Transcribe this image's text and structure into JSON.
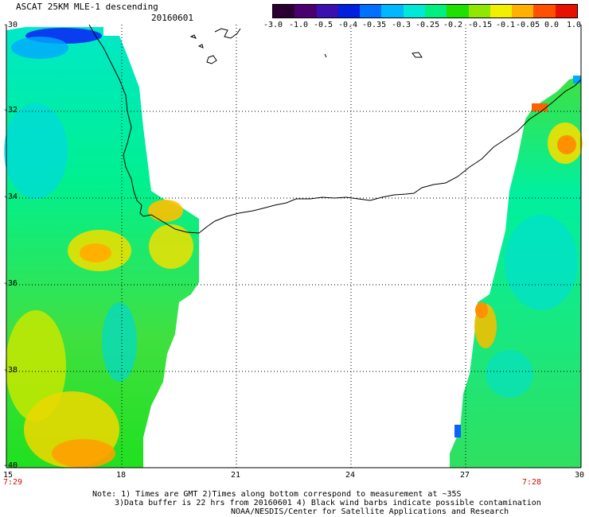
{
  "header": {
    "title": "ASCAT 25KM MLE-1 descending",
    "date": "20160601"
  },
  "colorbar": {
    "labels": [
      "-3.0",
      "-1.0",
      "-0.5",
      "-0.4",
      "-0.35",
      "-0.3",
      "-0.25",
      "-0.2",
      "-0.15",
      "-0.1",
      "-0.05",
      "0.0",
      "1.0"
    ],
    "colors": [
      "#2a0030",
      "#4b0070",
      "#3a10b0",
      "#0020e0",
      "#0070ff",
      "#00b8ff",
      "#00e8d8",
      "#00f080",
      "#20e000",
      "#90e800",
      "#f0f000",
      "#ffb000",
      "#ff5000",
      "#e81000"
    ]
  },
  "axes": {
    "lat_labels": [
      "-30",
      "-32",
      "-34",
      "-36",
      "-38",
      "-40"
    ],
    "lon_labels": [
      "15",
      "18",
      "21",
      "24",
      "27",
      "30"
    ],
    "time_labels": [
      "7:29",
      "7:28"
    ]
  },
  "notes": {
    "line1": "Note: 1) Times are GMT 2)Times along bottom correspond to measurement at ~35S",
    "line2": "3)Data buffer is 22 hrs from 20160601 4) Black wind barbs indicate possible contamination",
    "line3": "NOAA/NESDIS/Center for Satellite Applications and Research"
  }
}
